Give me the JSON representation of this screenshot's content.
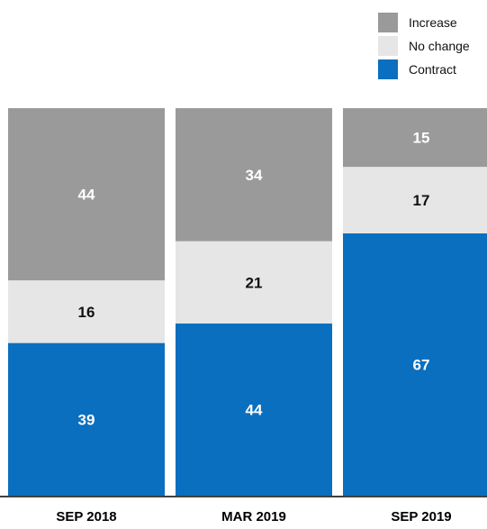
{
  "chart_data": {
    "type": "bar",
    "stacked": true,
    "title": "",
    "xlabel": "",
    "ylabel": "",
    "categories": [
      "SEP 2018",
      "MAR 2019",
      "SEP 2019"
    ],
    "series": [
      {
        "name": "Contract",
        "color": "#0a6fbf",
        "label_color": "#ffffff",
        "values": [
          39,
          44,
          67
        ]
      },
      {
        "name": "No change",
        "color": "#e6e6e6",
        "label_color": "#111111",
        "values": [
          16,
          21,
          17
        ]
      },
      {
        "name": "Increase",
        "color": "#9a9a9a",
        "label_color": "#ffffff",
        "values": [
          44,
          34,
          15
        ]
      }
    ],
    "legend": {
      "position": "top-right",
      "order": [
        "Increase",
        "No change",
        "Contract"
      ]
    },
    "grid": false,
    "axis_line_color": "#000000"
  }
}
